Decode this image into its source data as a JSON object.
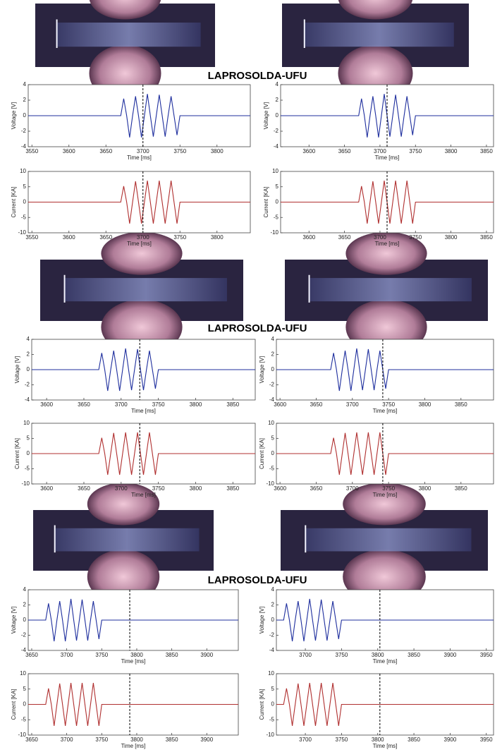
{
  "captions": [
    "LAPROSOLDA-UFU",
    "LAPROSOLDA-UFU",
    "LAPROSOLDA-UFU"
  ],
  "chart_data": [
    {
      "type": "line",
      "ylabel": "Voltage [V]",
      "xlabel": "Time [ms]",
      "xlim": [
        3545,
        3845
      ],
      "xticks": [
        3550,
        3600,
        3650,
        3700,
        3750,
        3800
      ],
      "ylim": [
        -4,
        4
      ],
      "yticks": [
        -4,
        -2,
        0,
        2,
        4
      ],
      "vline": 3700,
      "x": [
        3545,
        3670,
        3674,
        3678,
        3682,
        3686,
        3690,
        3694,
        3698,
        3702,
        3706,
        3710,
        3714,
        3718,
        3722,
        3726,
        3730,
        3734,
        3738,
        3742,
        3746,
        3750,
        3845
      ],
      "series": [
        {
          "color": "#1f2f9e",
          "values": [
            0,
            0,
            2.2,
            0,
            -2.8,
            0,
            2.5,
            0,
            -2.8,
            0,
            2.8,
            0,
            -2.7,
            0,
            2.7,
            0,
            -2.7,
            0,
            2.5,
            0,
            -2.5,
            0,
            0
          ]
        }
      ]
    },
    {
      "type": "line",
      "ylabel": "Current [KA]",
      "xlabel": "Time [ms]",
      "xlim": [
        3545,
        3845
      ],
      "xticks": [
        3550,
        3600,
        3650,
        3700,
        3750,
        3800
      ],
      "ylim": [
        -10,
        10
      ],
      "yticks": [
        -10,
        -5,
        0,
        5,
        10
      ],
      "vline": 3700,
      "x": [
        3545,
        3670,
        3674,
        3678,
        3682,
        3686,
        3690,
        3694,
        3698,
        3702,
        3706,
        3710,
        3714,
        3718,
        3722,
        3726,
        3730,
        3734,
        3738,
        3742,
        3746,
        3750,
        3845
      ],
      "series": [
        {
          "color": "#b03030",
          "values": [
            0,
            0,
            5.2,
            0,
            -7,
            0,
            6.8,
            0,
            -7,
            0,
            7,
            0,
            -7,
            0,
            7,
            0,
            -7,
            0,
            7,
            0,
            -7,
            0,
            0
          ]
        }
      ]
    },
    {
      "type": "line",
      "ylabel": "Voltage [V]",
      "xlabel": "Time [ms]",
      "xlim": [
        3560,
        3860
      ],
      "xticks": [
        3600,
        3650,
        3700,
        3750,
        3800,
        3850
      ],
      "ylim": [
        -4,
        4
      ],
      "yticks": [
        -4,
        -2,
        0,
        2,
        4
      ],
      "vline": 3710,
      "x": [
        3560,
        3670,
        3674,
        3678,
        3682,
        3686,
        3690,
        3694,
        3698,
        3702,
        3706,
        3710,
        3714,
        3718,
        3722,
        3726,
        3730,
        3734,
        3738,
        3742,
        3746,
        3750,
        3860
      ],
      "series": [
        {
          "color": "#1f2f9e",
          "values": [
            0,
            0,
            2.2,
            0,
            -2.8,
            0,
            2.5,
            0,
            -2.8,
            0,
            2.8,
            0,
            -2.7,
            0,
            2.7,
            0,
            -2.7,
            0,
            2.5,
            0,
            -2.5,
            0,
            0
          ]
        }
      ]
    },
    {
      "type": "line",
      "ylabel": "Current [KA]",
      "xlabel": "Time [ms]",
      "xlim": [
        3560,
        3860
      ],
      "xticks": [
        3600,
        3650,
        3700,
        3750,
        3800,
        3850
      ],
      "ylim": [
        -10,
        10
      ],
      "yticks": [
        -10,
        -5,
        0,
        5,
        10
      ],
      "vline": 3710,
      "x": [
        3560,
        3670,
        3674,
        3678,
        3682,
        3686,
        3690,
        3694,
        3698,
        3702,
        3706,
        3710,
        3714,
        3718,
        3722,
        3726,
        3730,
        3734,
        3738,
        3742,
        3746,
        3750,
        3860
      ],
      "series": [
        {
          "color": "#b03030",
          "values": [
            0,
            0,
            5.2,
            0,
            -7,
            0,
            6.8,
            0,
            -7,
            0,
            7,
            0,
            -7,
            0,
            7,
            0,
            -7,
            0,
            7,
            0,
            -7,
            0,
            0
          ]
        }
      ]
    },
    {
      "type": "line",
      "ylabel": "Voltage [V]",
      "xlabel": "Time [ms]",
      "xlim": [
        3580,
        3880
      ],
      "xticks": [
        3600,
        3650,
        3700,
        3750,
        3800,
        3850
      ],
      "ylim": [
        -4,
        4
      ],
      "yticks": [
        -4,
        -2,
        0,
        2,
        4
      ],
      "vline": 3725,
      "x": [
        3580,
        3670,
        3674,
        3678,
        3682,
        3686,
        3690,
        3694,
        3698,
        3702,
        3706,
        3710,
        3714,
        3718,
        3722,
        3726,
        3730,
        3734,
        3738,
        3742,
        3746,
        3750,
        3880
      ],
      "series": [
        {
          "color": "#1f2f9e",
          "values": [
            0,
            0,
            2.2,
            0,
            -2.8,
            0,
            2.5,
            0,
            -2.8,
            0,
            2.8,
            0,
            -2.7,
            0,
            2.7,
            0,
            -2.7,
            0,
            2.5,
            0,
            -2.5,
            0,
            0
          ]
        }
      ]
    },
    {
      "type": "line",
      "ylabel": "Current [KA]",
      "xlabel": "Time [ms]",
      "xlim": [
        3580,
        3880
      ],
      "xticks": [
        3600,
        3650,
        3700,
        3750,
        3800,
        3850
      ],
      "ylim": [
        -10,
        10
      ],
      "yticks": [
        -10,
        -5,
        0,
        5,
        10
      ],
      "vline": 3725,
      "x": [
        3580,
        3670,
        3674,
        3678,
        3682,
        3686,
        3690,
        3694,
        3698,
        3702,
        3706,
        3710,
        3714,
        3718,
        3722,
        3726,
        3730,
        3734,
        3738,
        3742,
        3746,
        3750,
        3880
      ],
      "series": [
        {
          "color": "#b03030",
          "values": [
            0,
            0,
            5.2,
            0,
            -7,
            0,
            6.8,
            0,
            -7,
            0,
            7,
            0,
            -7,
            0,
            7,
            0,
            -7,
            0,
            7,
            0,
            -7,
            0,
            0
          ]
        }
      ]
    },
    {
      "type": "line",
      "ylabel": "Voltage [V]",
      "xlabel": "Time [ms]",
      "xlim": [
        3595,
        3895
      ],
      "xticks": [
        3600,
        3650,
        3700,
        3750,
        3800,
        3850
      ],
      "ylim": [
        -4,
        4
      ],
      "yticks": [
        -4,
        -2,
        0,
        2,
        4
      ],
      "vline": 3742,
      "x": [
        3595,
        3670,
        3674,
        3678,
        3682,
        3686,
        3690,
        3694,
        3698,
        3702,
        3706,
        3710,
        3714,
        3718,
        3722,
        3726,
        3730,
        3734,
        3738,
        3742,
        3746,
        3750,
        3895
      ],
      "series": [
        {
          "color": "#1f2f9e",
          "values": [
            0,
            0,
            2.2,
            0,
            -2.8,
            0,
            2.5,
            0,
            -2.8,
            0,
            2.8,
            0,
            -2.7,
            0,
            2.7,
            0,
            -2.7,
            0,
            2.5,
            0,
            -2.5,
            0,
            0
          ]
        }
      ]
    },
    {
      "type": "line",
      "ylabel": "Current [KA]",
      "xlabel": "Time [ms]",
      "xlim": [
        3595,
        3895
      ],
      "xticks": [
        3600,
        3650,
        3700,
        3750,
        3800,
        3850
      ],
      "ylim": [
        -10,
        10
      ],
      "yticks": [
        -10,
        -5,
        0,
        5,
        10
      ],
      "vline": 3742,
      "x": [
        3595,
        3670,
        3674,
        3678,
        3682,
        3686,
        3690,
        3694,
        3698,
        3702,
        3706,
        3710,
        3714,
        3718,
        3722,
        3726,
        3730,
        3734,
        3738,
        3742,
        3746,
        3750,
        3895
      ],
      "series": [
        {
          "color": "#b03030",
          "values": [
            0,
            0,
            5.2,
            0,
            -7,
            0,
            6.8,
            0,
            -7,
            0,
            7,
            0,
            -7,
            0,
            7,
            0,
            -7,
            0,
            7,
            0,
            -7,
            0,
            0
          ]
        }
      ]
    },
    {
      "type": "line",
      "ylabel": "Voltage [V]",
      "xlabel": "Time [ms]",
      "xlim": [
        3645,
        3945
      ],
      "xticks": [
        3650,
        3700,
        3750,
        3800,
        3850,
        3900
      ],
      "ylim": [
        -4,
        4
      ],
      "yticks": [
        -4,
        -2,
        0,
        2,
        4
      ],
      "vline": 3790,
      "x": [
        3645,
        3670,
        3674,
        3678,
        3682,
        3686,
        3690,
        3694,
        3698,
        3702,
        3706,
        3710,
        3714,
        3718,
        3722,
        3726,
        3730,
        3734,
        3738,
        3742,
        3746,
        3750,
        3945
      ],
      "series": [
        {
          "color": "#1f2f9e",
          "values": [
            0,
            0,
            2.2,
            0,
            -2.8,
            0,
            2.5,
            0,
            -2.8,
            0,
            2.8,
            0,
            -2.7,
            0,
            2.7,
            0,
            -2.7,
            0,
            2.5,
            0,
            -2.5,
            0,
            0
          ]
        }
      ]
    },
    {
      "type": "line",
      "ylabel": "Current [KA]",
      "xlabel": "Time [ms]",
      "xlim": [
        3645,
        3945
      ],
      "xticks": [
        3650,
        3700,
        3750,
        3800,
        3850,
        3900
      ],
      "ylim": [
        -10,
        10
      ],
      "yticks": [
        -10,
        -5,
        0,
        5,
        10
      ],
      "vline": 3790,
      "x": [
        3645,
        3670,
        3674,
        3678,
        3682,
        3686,
        3690,
        3694,
        3698,
        3702,
        3706,
        3710,
        3714,
        3718,
        3722,
        3726,
        3730,
        3734,
        3738,
        3742,
        3746,
        3750,
        3945
      ],
      "series": [
        {
          "color": "#b03030",
          "values": [
            0,
            0,
            5.2,
            0,
            -7,
            0,
            6.8,
            0,
            -7,
            0,
            7,
            0,
            -7,
            0,
            7,
            0,
            -7,
            0,
            7,
            0,
            -7,
            0,
            0
          ]
        }
      ]
    },
    {
      "type": "line",
      "ylabel": "Voltage [V]",
      "xlabel": "Time [ms]",
      "xlim": [
        3660,
        3960
      ],
      "xticks": [
        3700,
        3750,
        3800,
        3850,
        3900,
        3950
      ],
      "ylim": [
        -4,
        4
      ],
      "yticks": [
        -4,
        -2,
        0,
        2,
        4
      ],
      "vline": 3803,
      "x": [
        3660,
        3670,
        3674,
        3678,
        3682,
        3686,
        3690,
        3694,
        3698,
        3702,
        3706,
        3710,
        3714,
        3718,
        3722,
        3726,
        3730,
        3734,
        3738,
        3742,
        3746,
        3750,
        3960
      ],
      "series": [
        {
          "color": "#1f2f9e",
          "values": [
            0,
            0,
            2.2,
            0,
            -2.8,
            0,
            2.5,
            0,
            -2.8,
            0,
            2.8,
            0,
            -2.7,
            0,
            2.7,
            0,
            -2.7,
            0,
            2.5,
            0,
            -2.5,
            0,
            0
          ]
        }
      ]
    },
    {
      "type": "line",
      "ylabel": "Current [KA]",
      "xlabel": "Time [ms]",
      "xlim": [
        3660,
        3960
      ],
      "xticks": [
        3700,
        3750,
        3800,
        3850,
        3900,
        3950
      ],
      "ylim": [
        -10,
        10
      ],
      "yticks": [
        -10,
        -5,
        0,
        5,
        10
      ],
      "vline": 3803,
      "x": [
        3660,
        3670,
        3674,
        3678,
        3682,
        3686,
        3690,
        3694,
        3698,
        3702,
        3706,
        3710,
        3714,
        3718,
        3722,
        3726,
        3730,
        3734,
        3738,
        3742,
        3746,
        3750,
        3960
      ],
      "series": [
        {
          "color": "#b03030",
          "values": [
            0,
            0,
            5.2,
            0,
            -7,
            0,
            6.8,
            0,
            -7,
            0,
            7,
            0,
            -7,
            0,
            7,
            0,
            -7,
            0,
            7,
            0,
            -7,
            0,
            0
          ]
        }
      ]
    }
  ]
}
